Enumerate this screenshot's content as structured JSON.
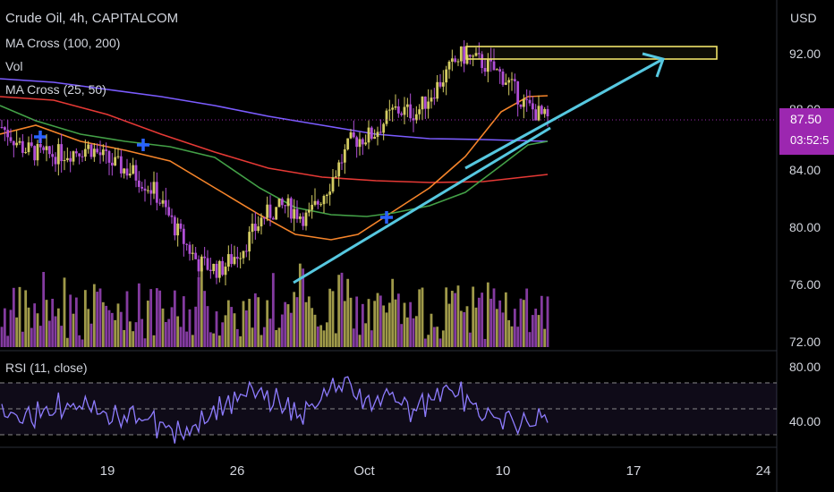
{
  "header": {
    "symbol_line": "Crude Oil, 4h, CAPITALCOM",
    "indicator_ma_long": "MA Cross (100, 200)",
    "indicator_vol": "Vol",
    "indicator_ma_short": "MA Cross (25, 50)",
    "indicator_rsi": "RSI (11, close)"
  },
  "price_axis": {
    "currency": "USD",
    "labels": [
      "92.00",
      "88.00",
      "84.00",
      "80.00",
      "76.00",
      "72.00"
    ],
    "current_price": "87.50",
    "countdown": "03:52:5"
  },
  "rsi_axis": {
    "labels": [
      "80.00",
      "40.00"
    ]
  },
  "time_axis": {
    "labels": [
      "19",
      "26",
      "Oct",
      "10",
      "17",
      "24"
    ]
  },
  "colors": {
    "background": "#000000",
    "bull": "#d4cc62",
    "bear": "#b04fd6",
    "ma100": "#7b5cff",
    "ma200": "#e53935",
    "ma25": "#f5842a",
    "ma50": "#43a047",
    "trendline": "#56c8e0",
    "resistance_box": "#f0e36a",
    "rsi": "#8e7cff",
    "price_tag": "#9c27b0",
    "cross_marker": "#2962ff"
  },
  "chart_data": {
    "type": "candlestick",
    "symbol": "Crude Oil",
    "timeframe": "4h",
    "ylim": [
      72,
      93
    ],
    "last_price": 87.5,
    "x_ticks": [
      "19",
      "26",
      "Oct",
      "10",
      "17",
      "24"
    ],
    "close_path": [
      {
        "x": "Sep 15",
        "y": 87.0
      },
      {
        "x": "Sep 16",
        "y": 85.5
      },
      {
        "x": "Sep 17",
        "y": 85.0
      },
      {
        "x": "Sep 19",
        "y": 85.2
      },
      {
        "x": "Sep 20",
        "y": 85.6
      },
      {
        "x": "Sep 22",
        "y": 84.5
      },
      {
        "x": "Sep 23",
        "y": 83.8
      },
      {
        "x": "Sep 24",
        "y": 82.5
      },
      {
        "x": "Sep 25",
        "y": 79.8
      },
      {
        "x": "Sep 26",
        "y": 77.5
      },
      {
        "x": "Sep 27",
        "y": 77.0
      },
      {
        "x": "Sep 28",
        "y": 78.5
      },
      {
        "x": "Sep 29",
        "y": 80.8
      },
      {
        "x": "Sep 30",
        "y": 81.5
      },
      {
        "x": "Oct 1",
        "y": 80.6
      },
      {
        "x": "Oct 2",
        "y": 83.0
      },
      {
        "x": "Oct 3",
        "y": 86.0
      },
      {
        "x": "Oct 4",
        "y": 86.5
      },
      {
        "x": "Oct 5",
        "y": 88.2
      },
      {
        "x": "Oct 6",
        "y": 88.0
      },
      {
        "x": "Oct 7",
        "y": 90.0
      },
      {
        "x": "Oct 8",
        "y": 92.0
      },
      {
        "x": "Oct 9",
        "y": 91.5
      },
      {
        "x": "Oct 10",
        "y": 90.5
      },
      {
        "x": "Oct 11",
        "y": 88.5
      },
      {
        "x": "Oct 12",
        "y": 87.5
      }
    ],
    "rsi": {
      "name": "RSI (11, close)",
      "levels": [
        70,
        50,
        30
      ],
      "ticks": [
        80,
        40
      ]
    }
  }
}
